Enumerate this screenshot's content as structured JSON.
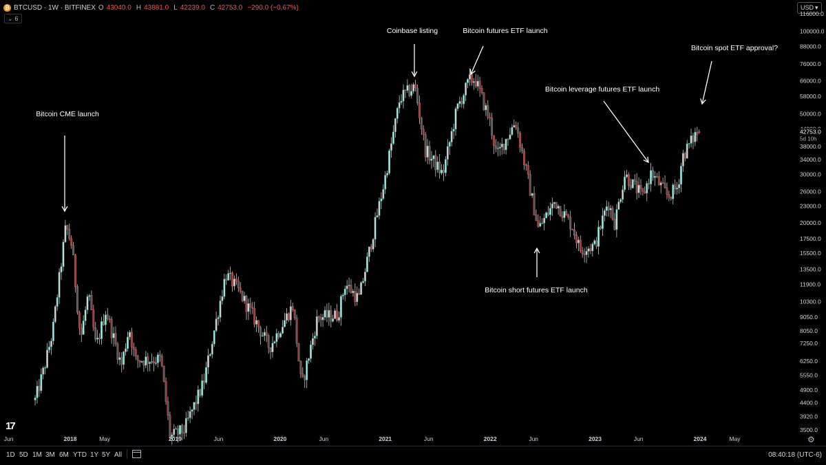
{
  "header": {
    "symbol": "BTCUSD · 1W · BITFINEX",
    "icon": "bitcoin-icon",
    "ohlc": [
      {
        "label": "O",
        "value": "43040.0"
      },
      {
        "label": "H",
        "value": "43881.0"
      },
      {
        "label": "L",
        "value": "42239.0"
      },
      {
        "label": "C",
        "value": "42753.0"
      }
    ],
    "change": "−290.0 (−0.67%)",
    "indicators_count": "6",
    "currency": "USD"
  },
  "price_axis": {
    "current_price": "42753.0",
    "countdown": "5d 10h",
    "ticks": [
      "116000.0",
      "100000.0",
      "88000.0",
      "76000.0",
      "66000.0",
      "58000.0",
      "50000.0",
      "44000.0",
      "38000.0",
      "34000.0",
      "30000.0",
      "26000.0",
      "23000.0",
      "20000.0",
      "17500.0",
      "15500.0",
      "13500.0",
      "11900.0",
      "10300.0",
      "9050.0",
      "8050.0",
      "7250.0",
      "6250.0",
      "5550.0",
      "4900.0",
      "4400.0",
      "3920.0",
      "3500.0"
    ]
  },
  "time_axis": {
    "ticks": [
      "Jun",
      "2018",
      "May",
      "2019",
      "Jun",
      "2020",
      "Jun",
      "2021",
      "Jun",
      "2022",
      "Jun",
      "2023",
      "Jun",
      "2024",
      "May"
    ],
    "bold": [
      "2018",
      "2019",
      "2020",
      "2021",
      "2022",
      "2023",
      "2024"
    ]
  },
  "annotations": [
    {
      "text": "Bitcoin CME launch"
    },
    {
      "text": "Coinbase listing"
    },
    {
      "text": "Bitcoin futures ETF launch"
    },
    {
      "text": "Bitcoin spot ETF approval?"
    },
    {
      "text": "Bitcoin leverage futures ETF launch"
    },
    {
      "text": "Bitcoin short futures ETF launch"
    }
  ],
  "bottom_bar": {
    "ranges": [
      "1D",
      "5D",
      "1M",
      "3M",
      "6M",
      "YTD",
      "1Y",
      "5Y",
      "All"
    ],
    "clock": "08:40:18 (UTC-6)"
  },
  "colors": {
    "up": "#26a69a",
    "down": "#ef5350",
    "axis_text": "#d1d4dc",
    "last_price_label": "#ef5350"
  },
  "chart_data": {
    "type": "candlestick",
    "interval": "1W",
    "scale": "log",
    "ylim": [
      3500,
      116000
    ],
    "series": [
      {
        "name": "BTCUSD",
        "anchors": [
          [
            "2017-09-01",
            4500
          ],
          [
            "2017-10-01",
            5800
          ],
          [
            "2017-11-01",
            8000
          ],
          [
            "2017-12-17",
            19500
          ],
          [
            "2018-01-07",
            16500
          ],
          [
            "2018-02-06",
            7500
          ],
          [
            "2018-03-05",
            11000
          ],
          [
            "2018-04-01",
            7000
          ],
          [
            "2018-05-05",
            9600
          ],
          [
            "2018-06-28",
            6000
          ],
          [
            "2018-07-25",
            8300
          ],
          [
            "2018-08-15",
            6300
          ],
          [
            "2018-11-12",
            6350
          ],
          [
            "2018-12-15",
            3300
          ],
          [
            "2019-02-01",
            3500
          ],
          [
            "2019-04-10",
            5200
          ],
          [
            "2019-06-26",
            13000
          ],
          [
            "2019-08-05",
            11500
          ],
          [
            "2019-09-20",
            9500
          ],
          [
            "2019-11-25",
            7000
          ],
          [
            "2020-02-15",
            10000
          ],
          [
            "2020-03-16",
            5000
          ],
          [
            "2020-05-10",
            9000
          ],
          [
            "2020-07-20",
            9200
          ],
          [
            "2020-08-15",
            12000
          ],
          [
            "2020-10-01",
            10500
          ],
          [
            "2020-12-31",
            29000
          ],
          [
            "2021-02-21",
            57000
          ],
          [
            "2021-04-14",
            63000
          ],
          [
            "2021-05-20",
            37000
          ],
          [
            "2021-07-20",
            30000
          ],
          [
            "2021-09-07",
            52000
          ],
          [
            "2021-10-20",
            66000
          ],
          [
            "2021-11-10",
            67000
          ],
          [
            "2021-12-31",
            47000
          ],
          [
            "2022-01-24",
            35000
          ],
          [
            "2022-03-30",
            47000
          ],
          [
            "2022-06-18",
            19000
          ],
          [
            "2022-08-15",
            24000
          ],
          [
            "2022-10-15",
            19300
          ],
          [
            "2022-11-09",
            16000
          ],
          [
            "2022-12-31",
            16500
          ],
          [
            "2023-02-15",
            24000
          ],
          [
            "2023-03-10",
            20000
          ],
          [
            "2023-04-14",
            30000
          ],
          [
            "2023-06-15",
            25000
          ],
          [
            "2023-07-15",
            30500
          ],
          [
            "2023-09-11",
            25000
          ],
          [
            "2023-10-15",
            27000
          ],
          [
            "2023-11-01",
            35000
          ],
          [
            "2023-12-15",
            42000
          ],
          [
            "2023-12-29",
            42753
          ]
        ]
      }
    ]
  }
}
